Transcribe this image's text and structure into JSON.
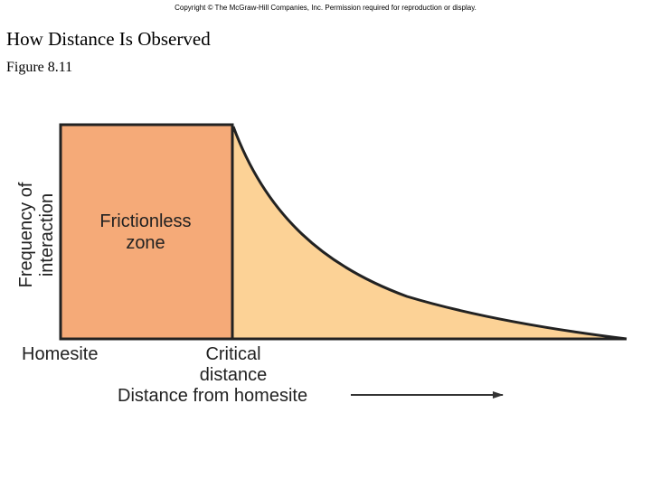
{
  "header": {
    "copyright": "Copyright © The McGraw-Hill Companies, Inc. Permission required for reproduction or display.",
    "title": "How Distance Is Observed",
    "figure": "Figure 8.11"
  },
  "diagram": {
    "y_axis_label_line1": "Frequency of",
    "y_axis_label_line2": "interaction",
    "zone_label_line1": "Frictionless",
    "zone_label_line2": "zone",
    "x_label_homesite": "Homesite",
    "x_label_critical_line1": "Critical",
    "x_label_critical_line2": "distance",
    "x_axis_title": "Distance from homesite",
    "colors": {
      "frictionless_fill": "#f5aa78",
      "decay_fill": "#fcd296",
      "outline": "#222222"
    }
  }
}
